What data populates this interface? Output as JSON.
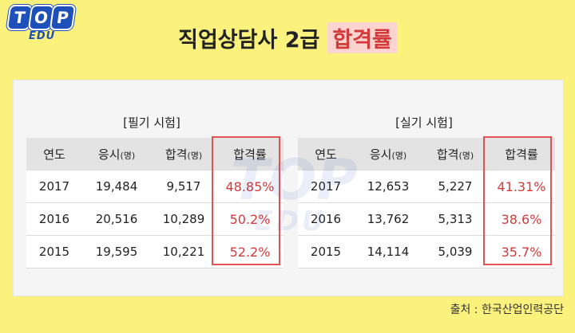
{
  "logo": {
    "letters": [
      "T",
      "O",
      "P"
    ],
    "sub": "EDU"
  },
  "title": {
    "main": "직업상담사 2급",
    "highlight": "합격률"
  },
  "written": {
    "label": "[필기 시험]",
    "headers": [
      "연도",
      "응시",
      "(명)",
      "합격",
      "(명)",
      "합격률"
    ],
    "rows": [
      [
        "2017",
        "19,484",
        "9,517",
        "48.85%"
      ],
      [
        "2016",
        "20,516",
        "10,289",
        "50.2%"
      ],
      [
        "2015",
        "19,595",
        "10,221",
        "52.2%"
      ]
    ]
  },
  "practical": {
    "label": "[실기 시험]",
    "headers": [
      "연도",
      "응시",
      "(명)",
      "합격",
      "(명)",
      "합격률"
    ],
    "rows": [
      [
        "2017",
        "12,653",
        "5,227",
        "41.31%"
      ],
      [
        "2016",
        "13,762",
        "5,313",
        "38.6%"
      ],
      [
        "2015",
        "14,114",
        "5,039",
        "35.7%"
      ]
    ]
  },
  "source": "출처 : 한국산업인력공단",
  "colors": {
    "background": "#fbf27e",
    "accent": "#d33a3a",
    "brand": "#1f4fb8"
  }
}
